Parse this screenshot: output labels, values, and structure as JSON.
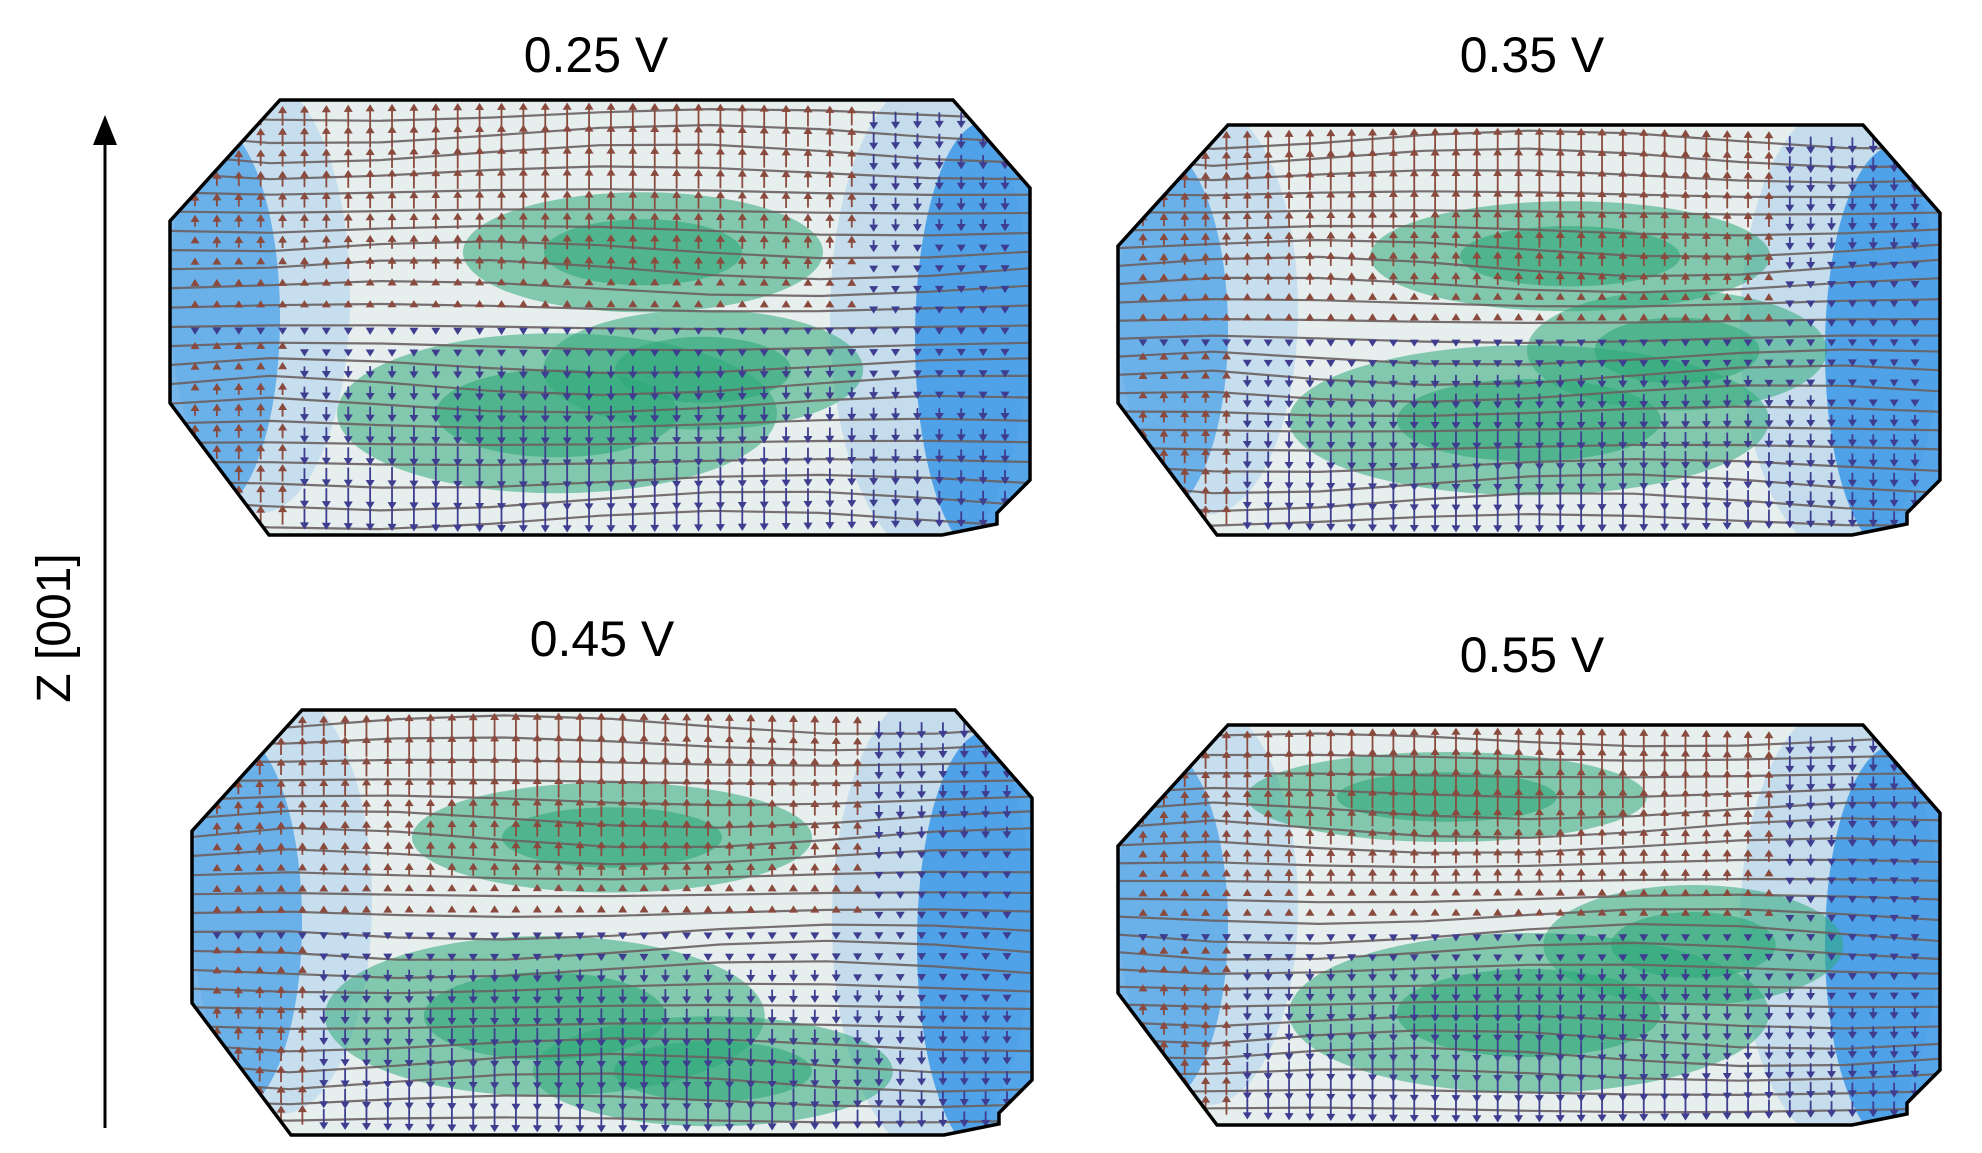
{
  "figure": {
    "axis_label": "Z [001]",
    "colors": {
      "outline": "#000000",
      "up_arrow": "#8b4a3e",
      "down_arrow": "#3e3d8f",
      "streamline": "#6a6060",
      "blue_region": "#3a98e8",
      "green_region": "#2fa97a",
      "neutral_region": "#e6eeee"
    },
    "panels": [
      {
        "id": "p1",
        "title": "0.25 V"
      },
      {
        "id": "p2",
        "title": "0.35 V"
      },
      {
        "id": "p3",
        "title": "0.45 V"
      },
      {
        "id": "p4",
        "title": "0.55 V"
      }
    ]
  }
}
